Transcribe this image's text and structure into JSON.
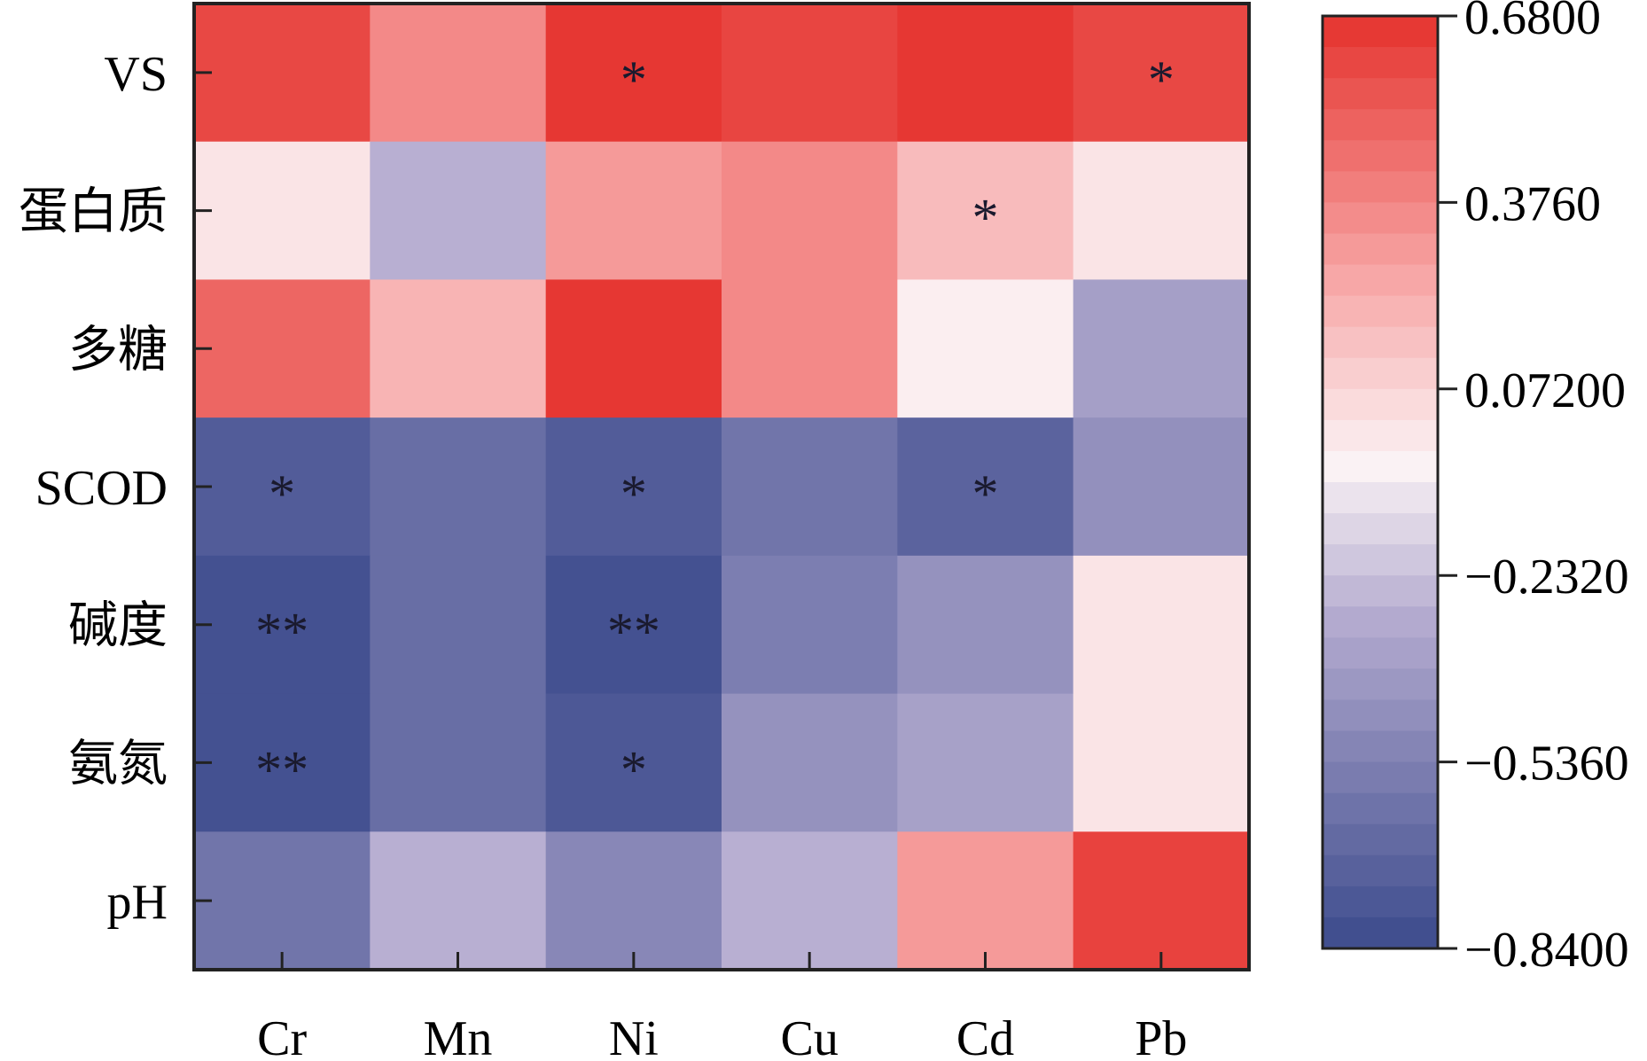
{
  "chart_data": {
    "type": "heatmap",
    "x_categories": [
      "Cr",
      "Mn",
      "Ni",
      "Cu",
      "Cd",
      "Pb"
    ],
    "y_categories": [
      "VS",
      "蛋白质",
      "多糖",
      "SCOD",
      "碱度",
      "氨氮",
      "pH"
    ],
    "values": [
      [
        0.6,
        0.36,
        0.66,
        0.61,
        0.66,
        0.6
      ],
      [
        0.01,
        -0.29,
        0.3,
        0.36,
        0.17,
        0.01
      ],
      [
        0.49,
        0.2,
        0.66,
        0.36,
        -0.03,
        -0.37
      ],
      [
        -0.74,
        -0.64,
        -0.74,
        -0.6,
        -0.7,
        -0.45
      ],
      [
        -0.8,
        -0.64,
        -0.8,
        -0.55,
        -0.44,
        0.01
      ],
      [
        -0.8,
        -0.64,
        -0.76,
        -0.44,
        -0.36,
        0.01
      ],
      [
        -0.6,
        -0.29,
        -0.5,
        -0.29,
        0.3,
        0.62
      ]
    ],
    "significance": [
      [
        "",
        "",
        "*",
        "",
        "",
        "*"
      ],
      [
        "",
        "",
        "",
        "",
        "*",
        ""
      ],
      [
        "",
        "",
        "",
        "",
        "",
        ""
      ],
      [
        "*",
        "",
        "*",
        "",
        "*",
        ""
      ],
      [
        "**",
        "",
        "**",
        "",
        "",
        ""
      ],
      [
        "**",
        "",
        "*",
        "",
        "",
        ""
      ],
      [
        "",
        "",
        "",
        "",
        "",
        ""
      ]
    ],
    "colorbar": {
      "min": -0.84,
      "max": 0.68,
      "tick_labels": [
        "0.6800",
        "0.3760",
        "0.07200",
        "−0.2320",
        "−0.5360",
        "−0.8400"
      ],
      "tick_values": [
        0.68,
        0.376,
        0.072,
        -0.232,
        -0.536,
        -0.84
      ],
      "colors": {
        "low": "#3b4a8c",
        "mid_low": "#b3aacf",
        "mid": "#fbf3f5",
        "mid_high": "#f7a6a6",
        "high": "#e5322d"
      }
    },
    "grid": false,
    "legend": "right"
  }
}
